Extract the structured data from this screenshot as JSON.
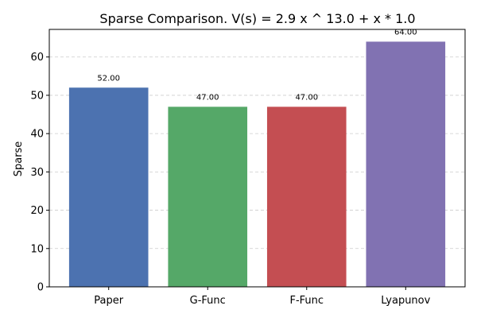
{
  "chart_data": {
    "type": "bar",
    "title": "Sparse Comparison. V(s) = 2.9 x ^ 13.0 + x * 1.0",
    "xlabel": "",
    "ylabel": "Sparse",
    "categories": [
      "Paper",
      "G-Func",
      "F-Func",
      "Lyapunov"
    ],
    "values": [
      52,
      47,
      47,
      64
    ],
    "value_labels": [
      "52.00",
      "47.00",
      "47.00",
      "64.00"
    ],
    "colors": [
      "#4c72b0",
      "#55a868",
      "#c44e52",
      "#8172b2"
    ],
    "ylim": [
      0,
      67.2
    ],
    "yticks": [
      0,
      10,
      20,
      30,
      40,
      50,
      60
    ],
    "ytick_labels": [
      "0",
      "10",
      "20",
      "30",
      "40",
      "50",
      "60"
    ],
    "grid": true,
    "grid_axis": "y",
    "legend": "none"
  }
}
